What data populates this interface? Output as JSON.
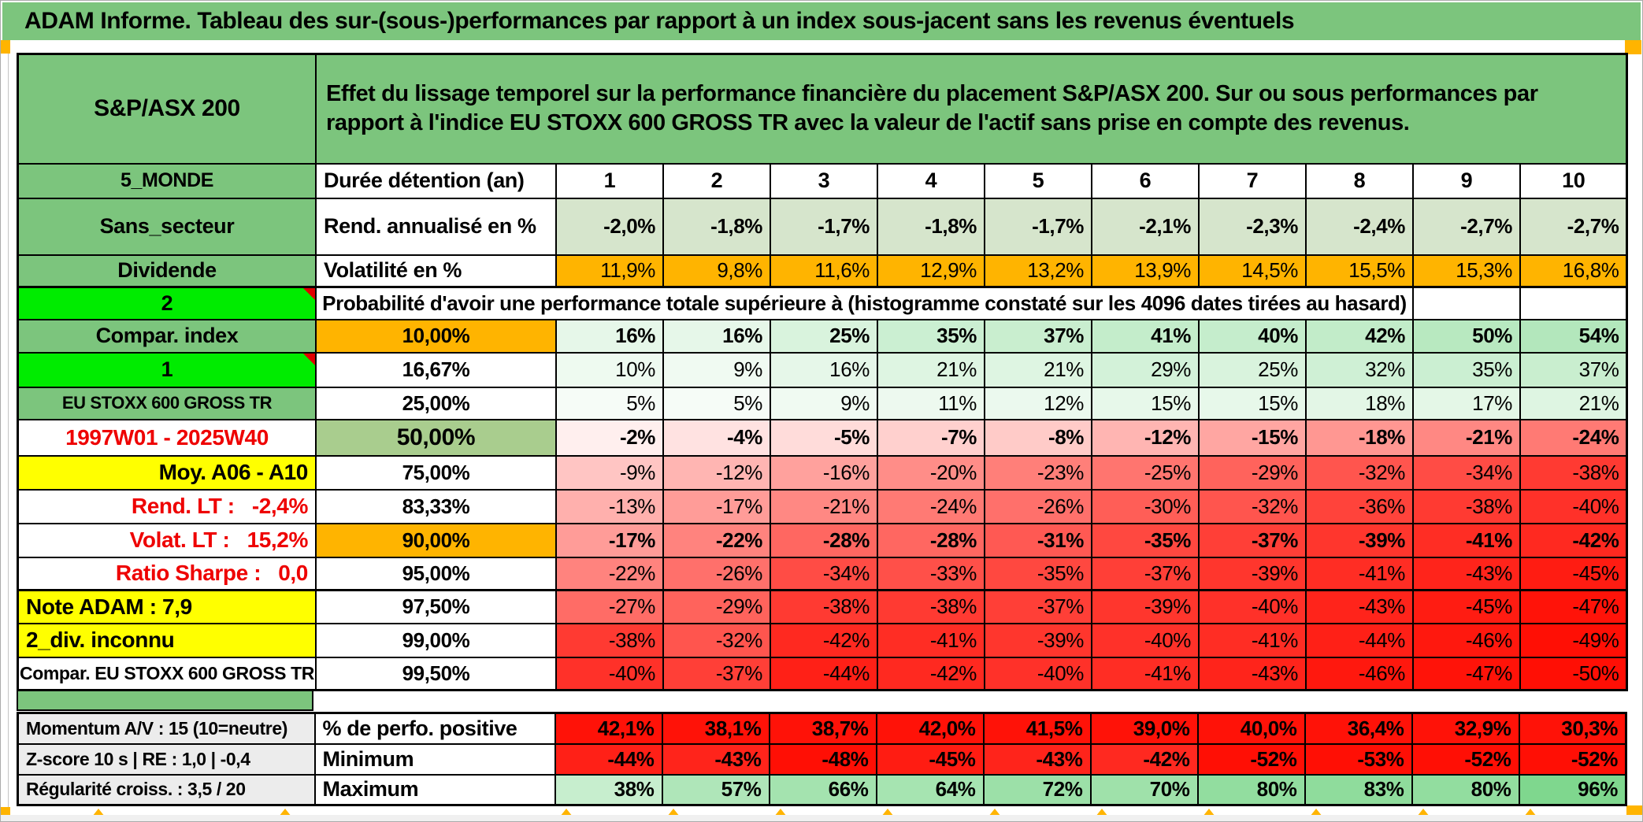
{
  "page_title": "ADAM Informe. Tableau des sur-(sous-)performances par rapport à un index sous-jacent sans les revenus éventuels",
  "colors": {
    "green": "#7cc57d",
    "bright_green": "#00ec00",
    "orange": "#ffb400",
    "olive_light": "#a9cd8e",
    "annualized_bg": "#d6e5cc",
    "yellow": "#ffff00",
    "gray_label": "#ececec",
    "red_text": "#ee0000",
    "heat_green": "#57cb6b",
    "heat_red": "#ff0f05",
    "solid_red": "#ff1208"
  },
  "header": {
    "asset_name": "S&P/ASX 200",
    "description": "Effet du lissage temporel sur la performance financière du placement S&P/ASX 200. Sur ou sous performances par rapport à l'indice EU STOXX 600 GROSS TR avec la valeur de l'actif sans prise en compte des revenus."
  },
  "duration": {
    "left_label": "5_MONDE",
    "label": "Durée détention (an)",
    "years": [
      "1",
      "2",
      "3",
      "4",
      "5",
      "6",
      "7",
      "8",
      "9",
      "10"
    ]
  },
  "annualized": {
    "left_label": "Sans_secteur",
    "label": "Rend. annualisé en %",
    "values": [
      "-2,0%",
      "-1,8%",
      "-1,7%",
      "-1,8%",
      "-1,7%",
      "-2,1%",
      "-2,3%",
      "-2,4%",
      "-2,7%",
      "-2,7%"
    ]
  },
  "volatility": {
    "left_label": "Dividende",
    "label": "Volatilité en %",
    "values": [
      "11,9%",
      "9,8%",
      "11,6%",
      "12,9%",
      "13,2%",
      "13,9%",
      "14,5%",
      "15,5%",
      "15,3%",
      "16,8%"
    ]
  },
  "probability_header": {
    "left_label": "2",
    "title": "Probabilité d'avoir une performance totale supérieure à (histogramme constaté sur les 4096 dates tirées au hasard)"
  },
  "probability_rows": [
    {
      "left": {
        "text": "Compar. index",
        "bg": "#7cc57d",
        "color": "#000",
        "align": "c",
        "size": 27
      },
      "threshold": "10,00%",
      "threshold_bg": "#ffb400",
      "threshold_size": 26,
      "bold": true,
      "values": [
        16,
        16,
        25,
        35,
        37,
        41,
        40,
        42,
        50,
        54
      ]
    },
    {
      "left": {
        "text": "1",
        "bg": "#00ec00",
        "color": "#000",
        "align": "c",
        "size": 27,
        "triangle": true
      },
      "threshold": "16,67%",
      "threshold_bg": "#ffffff",
      "threshold_size": 26,
      "bold": false,
      "values": [
        10,
        9,
        16,
        21,
        21,
        29,
        25,
        32,
        35,
        37
      ]
    },
    {
      "left": {
        "text": "EU STOXX 600 GROSS TR",
        "bg": "#7cc57d",
        "color": "#000",
        "align": "c",
        "size": 22
      },
      "threshold": "25,00%",
      "threshold_bg": "#ffffff",
      "threshold_size": 26,
      "bold": false,
      "values": [
        5,
        5,
        9,
        11,
        12,
        15,
        15,
        18,
        17,
        21
      ]
    },
    {
      "left": {
        "text": "1997W01 - 2025W40",
        "bg": "#ffffff",
        "color": "#ee0000",
        "align": "c",
        "size": 28
      },
      "threshold": "50,00%",
      "threshold_bg": "#a9cd8e",
      "threshold_size": 30,
      "bold": true,
      "values": [
        -2,
        -4,
        -5,
        -7,
        -8,
        -12,
        -15,
        -18,
        -21,
        -24
      ]
    },
    {
      "left": {
        "text": "Moy. A06 - A10",
        "bg": "#ffff00",
        "color": "#000",
        "align": "r",
        "size": 28
      },
      "threshold": "75,00%",
      "threshold_bg": "#ffffff",
      "threshold_size": 26,
      "bold": false,
      "values": [
        -9,
        -12,
        -16,
        -20,
        -23,
        -25,
        -29,
        -32,
        -34,
        -38
      ]
    },
    {
      "left": {
        "text": "Rend. LT :   -2,4%",
        "bg": "#ffffff",
        "color": "#ee0000",
        "align": "r",
        "size": 28
      },
      "threshold": "83,33%",
      "threshold_bg": "#ffffff",
      "threshold_size": 26,
      "bold": false,
      "values": [
        -13,
        -17,
        -21,
        -24,
        -26,
        -30,
        -32,
        -36,
        -38,
        -40
      ]
    },
    {
      "left": {
        "text": "Volat. LT :   15,2%",
        "bg": "#ffffff",
        "color": "#ee0000",
        "align": "r",
        "size": 28
      },
      "threshold": "90,00%",
      "threshold_bg": "#ffb400",
      "threshold_size": 26,
      "bold": true,
      "values": [
        -17,
        -22,
        -28,
        -28,
        -31,
        -35,
        -37,
        -39,
        -41,
        -42
      ]
    },
    {
      "left": {
        "text": "Ratio Sharpe :   0,0",
        "bg": "#ffffff",
        "color": "#ee0000",
        "align": "r",
        "size": 28,
        "thick": true
      },
      "threshold": "95,00%",
      "threshold_bg": "#ffffff",
      "threshold_size": 26,
      "bold": false,
      "values": [
        -22,
        -26,
        -34,
        -33,
        -35,
        -37,
        -39,
        -41,
        -43,
        -45
      ]
    },
    {
      "left": {
        "text": "Note ADAM : 7,9",
        "bg": "#ffff00",
        "color": "#000",
        "align": "l",
        "size": 28
      },
      "threshold": "97,50%",
      "threshold_bg": "#ffffff",
      "threshold_size": 26,
      "bold": false,
      "values": [
        -27,
        -29,
        -38,
        -38,
        -37,
        -39,
        -40,
        -43,
        -45,
        -47
      ]
    },
    {
      "left": {
        "text": "2_div. inconnu",
        "bg": "#ffff00",
        "color": "#000",
        "align": "l",
        "size": 28
      },
      "threshold": "99,00%",
      "threshold_bg": "#ffffff",
      "threshold_size": 26,
      "bold": false,
      "values": [
        -38,
        -32,
        -42,
        -41,
        -39,
        -40,
        -41,
        -44,
        -46,
        -49
      ]
    },
    {
      "left": {
        "text": "Compar. EU STOXX 600 GROSS TR",
        "bg": "#ffffff",
        "color": "#000",
        "align": "c",
        "size": 23
      },
      "threshold": "99,50%",
      "threshold_bg": "#ffffff",
      "threshold_size": 26,
      "bold": false,
      "values": [
        -40,
        -37,
        -44,
        -42,
        -40,
        -41,
        -43,
        -46,
        -47,
        -50
      ]
    }
  ],
  "summary_rows": [
    {
      "left_label": "Momentum A/V : 15 (10=neutre)",
      "label": "% de perfo. positive",
      "style": "solid",
      "values": [
        "42,1%",
        "38,1%",
        "38,7%",
        "42,0%",
        "41,5%",
        "39,0%",
        "40,0%",
        "36,4%",
        "32,9%",
        "30,3%"
      ]
    },
    {
      "left_label": "Z-score 10 s | RE : 1,0 | -0,4",
      "label": "Minimum",
      "style": "scale",
      "values": [
        -44,
        -43,
        -48,
        -45,
        -43,
        -42,
        -52,
        -53,
        -52,
        -52
      ]
    },
    {
      "left_label": "Régularité croiss. : 3,5 / 20",
      "label": "Maximum",
      "style": "scale",
      "values": [
        38,
        57,
        66,
        64,
        72,
        70,
        80,
        83,
        80,
        96
      ]
    }
  ]
}
